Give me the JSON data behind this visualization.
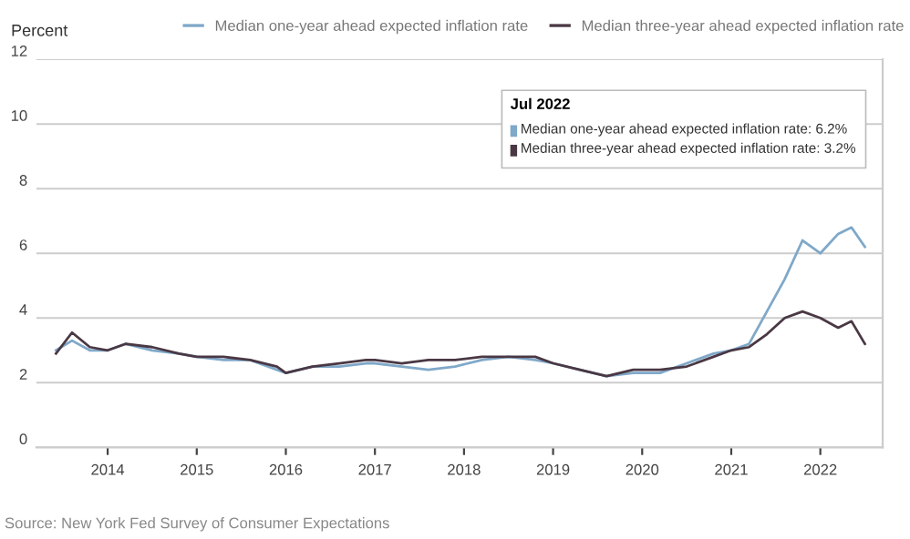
{
  "chart_data": {
    "type": "line",
    "ylabel": "Percent",
    "x": [
      2013.42,
      2013.6,
      2013.8,
      2014.0,
      2014.2,
      2014.5,
      2014.8,
      2015.0,
      2015.3,
      2015.6,
      2015.9,
      2016.0,
      2016.3,
      2016.6,
      2016.9,
      2017.0,
      2017.3,
      2017.6,
      2017.9,
      2018.2,
      2018.5,
      2018.8,
      2019.0,
      2019.3,
      2019.6,
      2019.9,
      2020.2,
      2020.5,
      2020.8,
      2021.0,
      2021.2,
      2021.4,
      2021.6,
      2021.8,
      2022.0,
      2022.2,
      2022.35,
      2022.5
    ],
    "series": [
      {
        "name": "Median one-year ahead expected inflation rate",
        "color": "#7fa8c9",
        "values": [
          3.0,
          3.3,
          3.0,
          3.0,
          3.2,
          3.0,
          2.9,
          2.8,
          2.7,
          2.7,
          2.4,
          2.3,
          2.5,
          2.5,
          2.6,
          2.6,
          2.5,
          2.4,
          2.5,
          2.7,
          2.8,
          2.7,
          2.6,
          2.4,
          2.2,
          2.3,
          2.3,
          2.6,
          2.9,
          3.0,
          3.2,
          4.2,
          5.2,
          6.4,
          6.0,
          6.6,
          6.8,
          6.2
        ]
      },
      {
        "name": "Median three-year ahead expected inflation rate",
        "color": "#4a3844",
        "values": [
          2.9,
          3.55,
          3.1,
          3.0,
          3.2,
          3.1,
          2.9,
          2.8,
          2.8,
          2.7,
          2.5,
          2.3,
          2.5,
          2.6,
          2.7,
          2.7,
          2.6,
          2.7,
          2.7,
          2.8,
          2.8,
          2.8,
          2.6,
          2.4,
          2.2,
          2.4,
          2.4,
          2.5,
          2.8,
          3.0,
          3.1,
          3.5,
          4.0,
          4.2,
          4.0,
          3.7,
          3.9,
          3.2
        ]
      }
    ],
    "xlim": [
      2013.2,
      2022.7
    ],
    "xticks": [
      2014,
      2015,
      2016,
      2017,
      2018,
      2019,
      2020,
      2021,
      2022
    ],
    "ylim": [
      0,
      12
    ],
    "yticks": [
      0,
      2,
      4,
      6,
      8,
      10,
      12
    ],
    "grid": "y",
    "legend": "top",
    "marker": "none",
    "line_style": "solid",
    "annotations": [
      "Jul 2022",
      "Median one-year ahead expected inflation rate: 6.2%",
      "Median three-year ahead expected inflation rate: 3.2%",
      "Source: New York Fed Survey of Consumer Expectations"
    ]
  }
}
